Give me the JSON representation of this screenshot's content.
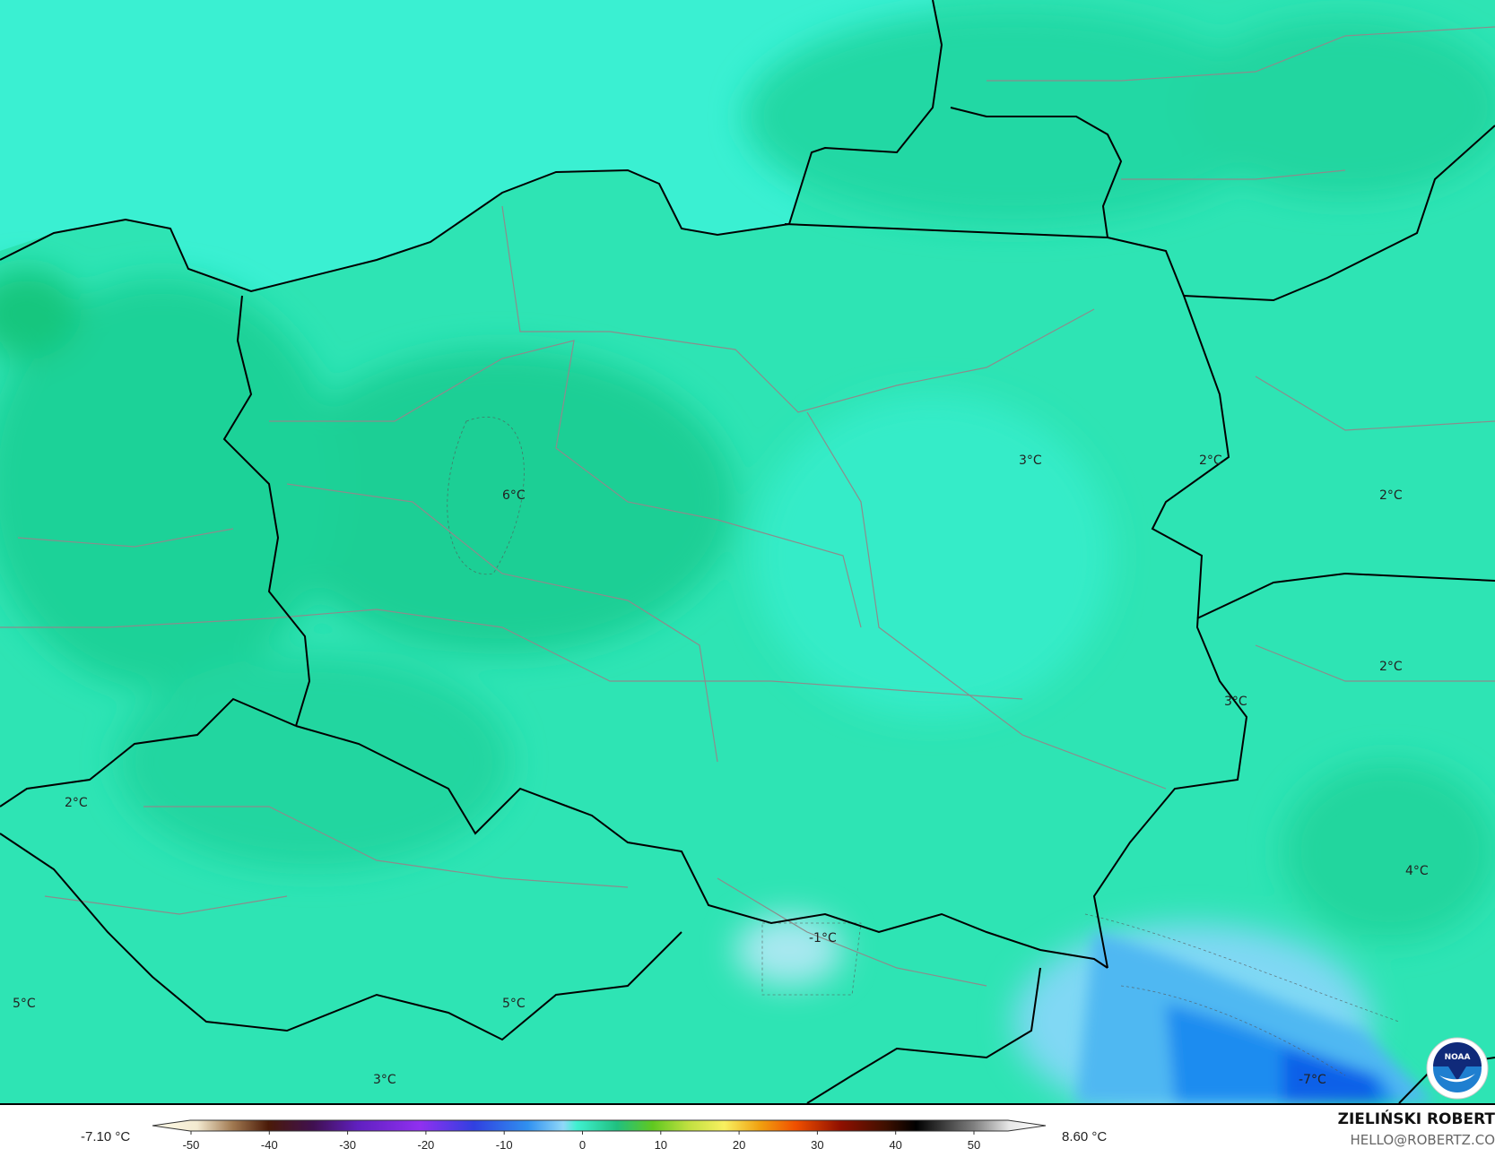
{
  "map": {
    "colors": {
      "land": "#2ee4b4",
      "sea": "#3af0d2",
      "warm": "#1ecf95",
      "cold": "#1a8cf0",
      "very_cold": "#1060e8",
      "border": "#000000",
      "region": "#8a8a8a"
    },
    "labels": [
      {
        "text": "6°C",
        "place": "central-west Poland"
      },
      {
        "text": "3°C",
        "place": "east Poland"
      },
      {
        "text": "2°C",
        "place": "Belarus west"
      },
      {
        "text": "2°C",
        "place": "Belarus"
      },
      {
        "text": "2°C",
        "place": "Ukraine north"
      },
      {
        "text": "3°C",
        "place": "Poland-Ukraine border"
      },
      {
        "text": "4°C",
        "place": "Ukraine west"
      },
      {
        "text": "2°C",
        "place": "Germany south"
      },
      {
        "text": "-1°C",
        "place": "Tatra mountains"
      },
      {
        "text": "5°C",
        "place": "Germany south-west"
      },
      {
        "text": "5°C",
        "place": "Czechia"
      },
      {
        "text": "3°C",
        "place": "Austria"
      },
      {
        "text": "-7°C",
        "place": "Carpathians"
      }
    ],
    "logo": "NOAA"
  },
  "colorbar": {
    "min_label": "-7.10 °C",
    "max_label": "8.60 °C",
    "ticks": [
      "-50",
      "-40",
      "-30",
      "-20",
      "-10",
      "0",
      "10",
      "20",
      "30",
      "40",
      "50"
    ]
  },
  "credits": {
    "author": "ZIELIŃSKI ROBERT",
    "email": "HELLO@ROBERTZ.CO"
  }
}
